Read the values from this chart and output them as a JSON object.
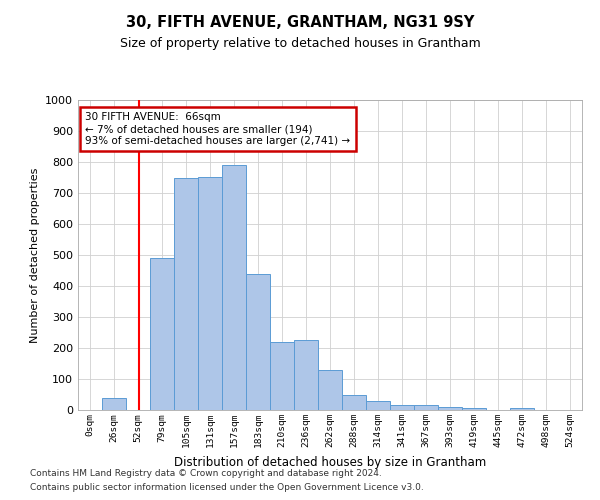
{
  "title": "30, FIFTH AVENUE, GRANTHAM, NG31 9SY",
  "subtitle": "Size of property relative to detached houses in Grantham",
  "xlabel": "Distribution of detached houses by size in Grantham",
  "ylabel": "Number of detached properties",
  "bin_labels": [
    "0sqm",
    "26sqm",
    "52sqm",
    "79sqm",
    "105sqm",
    "131sqm",
    "157sqm",
    "183sqm",
    "210sqm",
    "236sqm",
    "262sqm",
    "288sqm",
    "314sqm",
    "341sqm",
    "367sqm",
    "393sqm",
    "419sqm",
    "445sqm",
    "472sqm",
    "498sqm",
    "524sqm"
  ],
  "bar_heights": [
    0,
    40,
    0,
    490,
    750,
    752,
    790,
    438,
    220,
    225,
    128,
    50,
    28,
    16,
    15,
    10,
    8,
    0,
    8,
    0,
    0
  ],
  "bar_color": "#aec6e8",
  "bar_edge_color": "#5b9bd5",
  "ylim": [
    0,
    1000
  ],
  "yticks": [
    0,
    100,
    200,
    300,
    400,
    500,
    600,
    700,
    800,
    900,
    1000
  ],
  "red_line_x": 2.54,
  "annotation_line1": "30 FIFTH AVENUE:  66sqm",
  "annotation_line2": "← 7% of detached houses are smaller (194)",
  "annotation_line3": "93% of semi-detached houses are larger (2,741) →",
  "annotation_box_color": "#cc0000",
  "footer_line1": "Contains HM Land Registry data © Crown copyright and database right 2024.",
  "footer_line2": "Contains public sector information licensed under the Open Government Licence v3.0.",
  "background_color": "#ffffff",
  "grid_color": "#d0d0d0",
  "title_fontsize": 10.5,
  "subtitle_fontsize": 9
}
